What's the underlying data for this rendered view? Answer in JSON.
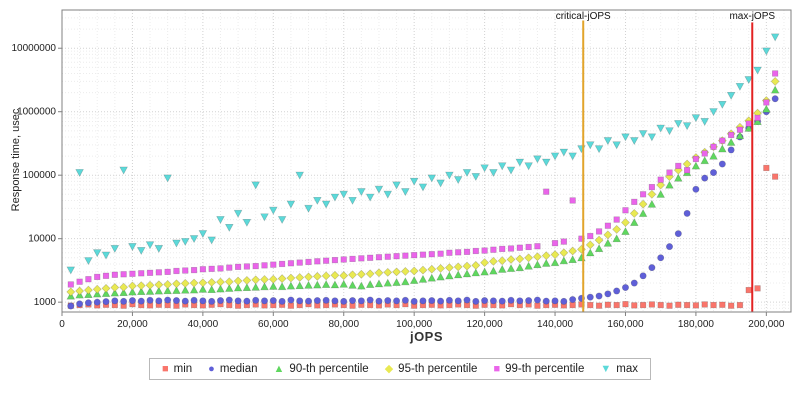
{
  "figure": {
    "ylabel": "Response time, usec",
    "xlabel": "jOPS"
  },
  "chart_data": {
    "type": "scatter",
    "title": "",
    "xlabel": "jOPS",
    "ylabel": "Response time, usec",
    "y_scale": "log",
    "grid": true,
    "legend_position": "bottom",
    "xlim": [
      0,
      207000
    ],
    "ylim": [
      700,
      40000000
    ],
    "x_ticks": [
      0,
      20000,
      40000,
      60000,
      80000,
      100000,
      120000,
      140000,
      160000,
      180000,
      200000
    ],
    "x_tick_labels": [
      "0",
      "20,000",
      "40,000",
      "60,000",
      "80,000",
      "100,000",
      "120,000",
      "140,000",
      "160,000",
      "180,000",
      "200,000"
    ],
    "y_ticks": [
      1000,
      10000,
      100000,
      1000000,
      10000000
    ],
    "y_tick_labels": [
      "1000",
      "10000",
      "100000",
      "1000000",
      "10000000"
    ],
    "vlines": [
      {
        "label": "critical-jOPS",
        "x": 148000,
        "color": "#e2a42b"
      },
      {
        "label": "max-jOPS",
        "x": 196000,
        "color": "#e32222"
      }
    ],
    "x": [
      2500,
      5000,
      7500,
      10000,
      12500,
      15000,
      17500,
      20000,
      22500,
      25000,
      27500,
      30000,
      32500,
      35000,
      37500,
      40000,
      42500,
      45000,
      47500,
      50000,
      52500,
      55000,
      57500,
      60000,
      62500,
      65000,
      67500,
      70000,
      72500,
      75000,
      77500,
      80000,
      82500,
      85000,
      87500,
      90000,
      92500,
      95000,
      97500,
      100000,
      102500,
      105000,
      107500,
      110000,
      112500,
      115000,
      117500,
      120000,
      122500,
      125000,
      127500,
      130000,
      132500,
      135000,
      137500,
      140000,
      142500,
      145000,
      147500,
      150000,
      152500,
      155000,
      157500,
      160000,
      162500,
      165000,
      167500,
      170000,
      172500,
      175000,
      177500,
      180000,
      182500,
      185000,
      187500,
      190000,
      192500,
      195000,
      197500,
      200000,
      202500
    ],
    "series": [
      {
        "name": "min",
        "marker": "square",
        "color": "#f9756b",
        "values": [
          880,
          900,
          920,
          890,
          910,
          900,
          880,
          930,
          900,
          890,
          910,
          900,
          880,
          920,
          900,
          890,
          910,
          930,
          900,
          880,
          900,
          920,
          890,
          900,
          910,
          880,
          900,
          930,
          890,
          900,
          920,
          900,
          880,
          910,
          900,
          890,
          920,
          900,
          930,
          880,
          900,
          910,
          890,
          900,
          920,
          900,
          880,
          910,
          900,
          890,
          930,
          900,
          920,
          880,
          900,
          910,
          890,
          900,
          920,
          900,
          880,
          910,
          900,
          930,
          890,
          900,
          920,
          900,
          880,
          910,
          900,
          890,
          920,
          900,
          910,
          880,
          900,
          1550,
          1650,
          130000,
          95000
        ]
      },
      {
        "name": "median",
        "marker": "circle",
        "color": "#5f5fd8",
        "values": [
          870,
          940,
          980,
          1000,
          1020,
          1050,
          1030,
          1060,
          1040,
          1070,
          1050,
          1080,
          1060,
          1040,
          1070,
          1050,
          1030,
          1060,
          1080,
          1050,
          1040,
          1070,
          1050,
          1060,
          1030,
          1080,
          1050,
          1040,
          1060,
          1070,
          1050,
          1030,
          1060,
          1050,
          1080,
          1040,
          1060,
          1050,
          1070,
          1030,
          1050,
          1060,
          1040,
          1070,
          1050,
          1080,
          1030,
          1060,
          1050,
          1040,
          1070,
          1050,
          1060,
          1080,
          1040,
          1050,
          1030,
          1100,
          1150,
          1200,
          1250,
          1350,
          1500,
          1700,
          2000,
          2600,
          3500,
          5000,
          7500,
          12000,
          25000,
          60000,
          90000,
          110000,
          150000,
          250000,
          400000,
          550000,
          700000,
          1000000,
          1600000
        ]
      },
      {
        "name": "90-th percentile",
        "marker": "triangle-up",
        "color": "#5fd75f",
        "values": [
          1250,
          1300,
          1320,
          1350,
          1370,
          1400,
          1420,
          1450,
          1470,
          1480,
          1500,
          1520,
          1530,
          1550,
          1560,
          1600,
          1580,
          1620,
          1650,
          1680,
          1700,
          1720,
          1750,
          1780,
          1760,
          1800,
          1820,
          1850,
          1870,
          1900,
          1880,
          1920,
          1850,
          1800,
          1900,
          1950,
          2000,
          2050,
          2100,
          2200,
          2300,
          2400,
          2500,
          2600,
          2700,
          2800,
          2900,
          3000,
          3100,
          3300,
          3400,
          3500,
          3700,
          3900,
          4100,
          4200,
          4500,
          4700,
          5000,
          6000,
          7000,
          8500,
          10000,
          13000,
          18000,
          25000,
          35000,
          50000,
          70000,
          90000,
          110000,
          140000,
          170000,
          200000,
          260000,
          330000,
          420000,
          550000,
          700000,
          1100000,
          2200000
        ]
      },
      {
        "name": "95-th percentile",
        "marker": "diamond",
        "color": "#e9e952",
        "values": [
          1450,
          1500,
          1550,
          1600,
          1650,
          1700,
          1720,
          1800,
          1820,
          1850,
          1880,
          1900,
          1950,
          1980,
          2000,
          2020,
          2050,
          2080,
          2100,
          2150,
          2200,
          2250,
          2280,
          2300,
          2350,
          2400,
          2450,
          2500,
          2550,
          2600,
          2650,
          2620,
          2700,
          2750,
          2800,
          2900,
          2950,
          3000,
          3050,
          3100,
          3200,
          3300,
          3400,
          3500,
          3600,
          3700,
          3800,
          4200,
          4400,
          4500,
          4700,
          4800,
          5000,
          5200,
          5400,
          5600,
          6000,
          6400,
          6800,
          8000,
          9500,
          11500,
          14000,
          18000,
          25000,
          35000,
          50000,
          70000,
          95000,
          120000,
          150000,
          190000,
          230000,
          280000,
          350000,
          450000,
          570000,
          720000,
          950000,
          1500000,
          3000000
        ]
      },
      {
        "name": "99-th percentile",
        "marker": "square",
        "color": "#ea64ea",
        "values": [
          1900,
          2100,
          2300,
          2500,
          2600,
          2700,
          2750,
          2800,
          2850,
          2900,
          2950,
          3000,
          3100,
          3150,
          3200,
          3300,
          3350,
          3400,
          3500,
          3600,
          3650,
          3700,
          3800,
          3900,
          4000,
          4100,
          4200,
          4300,
          4400,
          4500,
          4600,
          4700,
          4800,
          4900,
          5000,
          5100,
          5200,
          5300,
          5400,
          5500,
          5600,
          5700,
          5800,
          6000,
          6100,
          6200,
          6400,
          6500,
          6700,
          6900,
          7000,
          7200,
          7400,
          7600,
          55000,
          8500,
          9000,
          40000,
          10000,
          11000,
          13000,
          16000,
          20000,
          28000,
          38000,
          50000,
          65000,
          85000,
          110000,
          140000,
          120000,
          180000,
          220000,
          280000,
          350000,
          430000,
          520000,
          650000,
          800000,
          1400000,
          4000000
        ]
      },
      {
        "name": "max",
        "marker": "triangle-down",
        "color": "#5cd9d9",
        "values": [
          3200,
          110000,
          4500,
          6000,
          5500,
          7000,
          120000,
          7500,
          6500,
          8000,
          7000,
          90000,
          8500,
          9000,
          10000,
          12000,
          9500,
          20000,
          15000,
          25000,
          18000,
          70000,
          22000,
          28000,
          20000,
          35000,
          100000,
          30000,
          40000,
          35000,
          45000,
          50000,
          40000,
          55000,
          45000,
          60000,
          50000,
          70000,
          55000,
          80000,
          65000,
          90000,
          75000,
          100000,
          85000,
          110000,
          95000,
          130000,
          110000,
          140000,
          120000,
          160000,
          140000,
          180000,
          160000,
          200000,
          230000,
          200000,
          260000,
          300000,
          260000,
          350000,
          300000,
          400000,
          350000,
          450000,
          400000,
          550000,
          500000,
          650000,
          600000,
          800000,
          700000,
          1000000,
          1300000,
          1800000,
          2500000,
          3200000,
          4500000,
          9000000,
          15000000
        ]
      }
    ]
  }
}
